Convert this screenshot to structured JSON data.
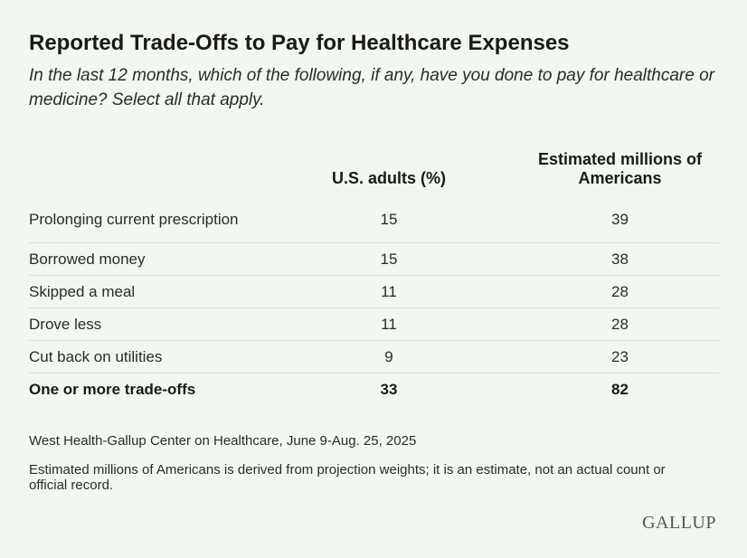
{
  "header": {
    "title": "Reported Trade-Offs to Pay for Healthcare Expenses",
    "subtitle": "In the last 12 months, which of the following, if any, have you done to pay for healthcare or medicine? Select all that apply."
  },
  "table": {
    "columns": [
      "U.S. adults (%)",
      "Estimated millions of Americans"
    ],
    "rows": [
      [
        "Prolonging current prescription",
        15,
        39
      ],
      [
        "Borrowed money",
        15,
        38
      ],
      [
        "Skipped a meal",
        11,
        28
      ],
      [
        "Drove less",
        11,
        28
      ],
      [
        "Cut back on utilities",
        9,
        23
      ],
      [
        "One or more trade-offs",
        33,
        82
      ]
    ]
  },
  "footer": {
    "source": "West Health-Gallup Center on Healthcare, June 9-Aug. 25, 2025",
    "note": "Estimated millions of Americans is derived from projection weights; it is an estimate, not an actual count or official record.",
    "logo": "GALLUP"
  }
}
